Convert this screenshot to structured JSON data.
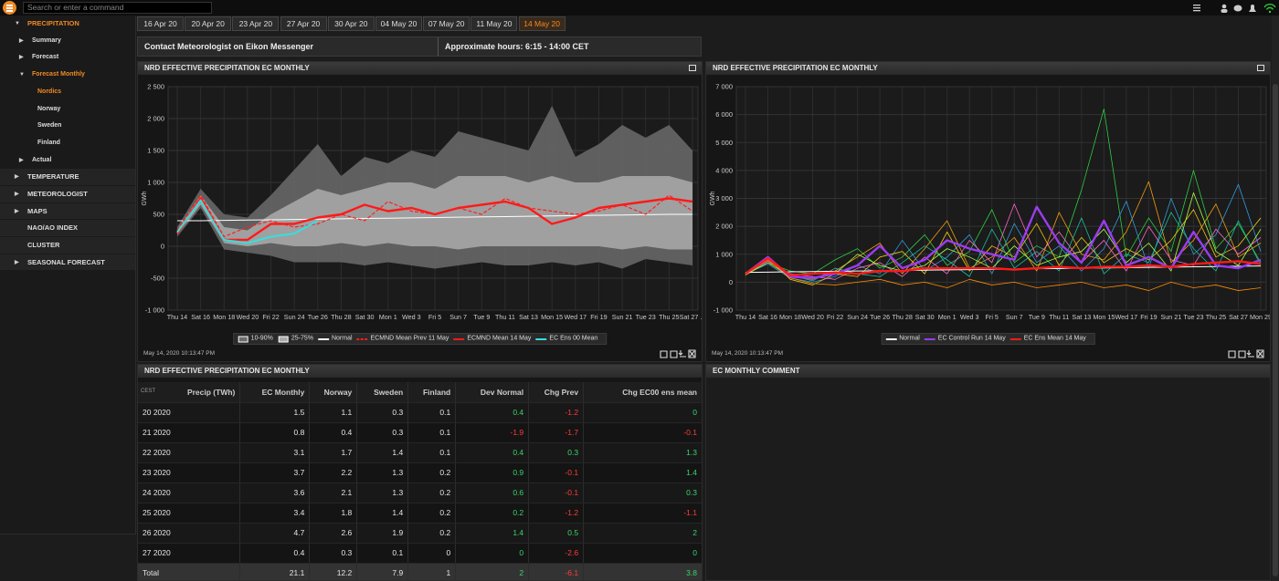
{
  "top_bar": {
    "search_placeholder": "Search or enter a command"
  },
  "sidebar": {
    "items": [
      {
        "text": "PRECIPITATION",
        "level": 0,
        "arrow": "down",
        "active": true
      },
      {
        "text": "Summary",
        "level": 1,
        "arrow": "right"
      },
      {
        "text": "Forecast",
        "level": 1,
        "arrow": "right"
      },
      {
        "text": "Forecast Monthly",
        "level": 1,
        "arrow": "down",
        "active": true
      },
      {
        "text": "Nordics",
        "level": 2,
        "active": true
      },
      {
        "text": "Norway",
        "level": 2
      },
      {
        "text": "Sweden",
        "level": 2
      },
      {
        "text": "Finland",
        "level": 2
      },
      {
        "text": "Actual",
        "level": 1,
        "arrow": "right"
      },
      {
        "text": "TEMPERATURE",
        "level": 0,
        "arrow": "right"
      },
      {
        "text": "METEOROLOGIST",
        "level": 0,
        "arrow": "right"
      },
      {
        "text": "MAPS",
        "level": 0,
        "arrow": "right"
      },
      {
        "text": "NAO/AO INDEX",
        "level": 0
      },
      {
        "text": "CLUSTER",
        "level": 0
      },
      {
        "text": "SEASONAL FORECAST",
        "level": 0,
        "arrow": "right"
      }
    ]
  },
  "tabs": {
    "items": [
      "16 Apr 20",
      "20 Apr 20",
      "23 Apr 20",
      "27 Apr 20",
      "30 Apr 20",
      "04 May 20",
      "07 May 20",
      "11 May 20",
      "14 May 20"
    ],
    "active": 8
  },
  "info_bar": {
    "contact": "Contact Meteorologist on Eikon Messenger",
    "hours": "Approximate hours: 6:15 - 14:00 CET"
  },
  "chart_data": [
    {
      "type": "line",
      "title": "NRD EFFECTIVE PRECIPITATION EC MONTHLY",
      "y_label": "GWh",
      "timestamp": "May 14, 2020 10:13:47 PM",
      "grid": true,
      "categories": [
        "Thu 14",
        "Sat 16",
        "Mon 18",
        "Wed 20",
        "Fri 22",
        "Sun 24",
        "Tue 26",
        "Thu 28",
        "Sat 30",
        "Mon 1",
        "Wed 3",
        "Fri 5",
        "Sun 7",
        "Tue 9",
        "Thu 11",
        "Sat 13",
        "Mon 15",
        "Wed 17",
        "Fri 19",
        "Sun 21",
        "Tue 23",
        "Thu 25",
        "Sat 27 ..."
      ],
      "ylim": [
        -1000,
        2500
      ],
      "yticks": [
        {
          "value": -1000,
          "label": "-1 000"
        },
        -500,
        0,
        500,
        {
          "value": 1000,
          "label": "1 000"
        },
        {
          "value": 1500,
          "label": "1 500"
        },
        {
          "value": 2000,
          "label": "2 000"
        },
        {
          "value": 2500,
          "label": "2 500"
        }
      ],
      "series": [
        {
          "name": "10-90%",
          "color": "#6b6b6b",
          "high": [
            300,
            900,
            500,
            450,
            800,
            1200,
            1600,
            1100,
            1400,
            1300,
            1500,
            1400,
            1800,
            1700,
            1600,
            1500,
            2200,
            1400,
            1600,
            1900,
            1700,
            1900,
            1500
          ],
          "low": [
            150,
            600,
            -50,
            -100,
            -150,
            -250,
            -250,
            -250,
            -300,
            -250,
            -300,
            -350,
            -300,
            -250,
            -300,
            -300,
            -250,
            -300,
            -250,
            -350,
            -200,
            -250,
            -300
          ]
        },
        {
          "name": "25-75%",
          "color": "#ababab",
          "high": [
            260,
            800,
            300,
            250,
            500,
            700,
            900,
            800,
            900,
            1000,
            1000,
            900,
            1100,
            1100,
            1100,
            1000,
            1100,
            1000,
            1000,
            1100,
            1100,
            1100,
            1000
          ],
          "low": [
            180,
            650,
            50,
            0,
            50,
            0,
            0,
            50,
            0,
            50,
            0,
            0,
            -50,
            0,
            0,
            0,
            0,
            0,
            0,
            -50,
            0,
            -50,
            -50
          ]
        },
        {
          "name": "Normal",
          "color": "#ffffff",
          "line_width": 1,
          "values": [
            400,
            400,
            405,
            410,
            415,
            420,
            425,
            430,
            435,
            440,
            445,
            450,
            455,
            460,
            465,
            470,
            475,
            480,
            485,
            490,
            495,
            500,
            500
          ]
        },
        {
          "name": "ECMND Mean Prev 11 May",
          "color": "#ff2020",
          "dash": true,
          "line_width": 1.2,
          "values": [
            250,
            800,
            150,
            300,
            400,
            300,
            350,
            500,
            400,
            700,
            550,
            500,
            600,
            500,
            750,
            600,
            550,
            500,
            550,
            650,
            500,
            800,
            550
          ]
        },
        {
          "name": "ECMND Mean 14 May",
          "color": "#ff1a1a",
          "line_width": 2.4,
          "values": [
            200,
            750,
            100,
            100,
            350,
            350,
            450,
            500,
            650,
            550,
            600,
            500,
            600,
            650,
            700,
            600,
            350,
            450,
            600,
            650,
            700,
            750,
            700
          ]
        },
        {
          "name": "EC Ens 00 Mean",
          "color": "#33e0e0",
          "line_width": 2,
          "values": [
            220,
            720,
            100,
            50,
            150,
            200,
            400,
            null,
            null,
            null,
            null,
            null,
            null,
            null,
            null,
            null,
            null,
            null,
            null,
            null,
            null,
            null,
            null
          ]
        }
      ]
    },
    {
      "type": "line",
      "title": "NRD EFFECTIVE PRECIPITATION EC MONTHLY",
      "y_label": "GWh",
      "timestamp": "May 14, 2020 10:13:47 PM",
      "grid": true,
      "categories": [
        "Thu 14",
        "Sat 16",
        "Mon 18",
        "Wed 20",
        "Fri 22",
        "Sun 24",
        "Tue 26",
        "Thu 28",
        "Sat 30",
        "Mon 1",
        "Wed 3",
        "Fri 5",
        "Sun 7",
        "Tue 9",
        "Thu 11",
        "Sat 13",
        "Mon 15",
        "Wed 17",
        "Fri 19",
        "Sun 21",
        "Tue 23",
        "Thu 25",
        "Sat 27",
        "Mon 29"
      ],
      "ylim": [
        -1000,
        7000
      ],
      "yticks": [
        {
          "value": -1000,
          "label": "-1 000"
        },
        0,
        {
          "value": 1000,
          "label": "1 000"
        },
        {
          "value": 2000,
          "label": "2 000"
        },
        {
          "value": 3000,
          "label": "3 000"
        },
        {
          "value": 4000,
          "label": "4 000"
        },
        {
          "value": 5000,
          "label": "5 000"
        },
        {
          "value": 6000,
          "label": "6 000"
        },
        {
          "value": 7000,
          "label": "7 000"
        }
      ],
      "series": [
        {
          "color": "#2ecc40",
          "line_width": 0.8,
          "values": [
            300,
            700,
            400,
            300,
            800,
            1200,
            500,
            900,
            1700,
            600,
            1100,
            2600,
            700,
            1300,
            900,
            3300,
            6200,
            900,
            2300,
            1100,
            4000,
            1200,
            2100,
            700
          ]
        },
        {
          "color": "#f39c12",
          "line_width": 0.8,
          "values": [
            250,
            800,
            200,
            100,
            400,
            900,
            1400,
            300,
            1200,
            2200,
            500,
            900,
            1600,
            400,
            2500,
            1000,
            800,
            1800,
            3600,
            700,
            1500,
            2800,
            900,
            1400
          ]
        },
        {
          "color": "#3498db",
          "line_width": 0.8,
          "values": [
            300,
            650,
            150,
            0,
            200,
            600,
            300,
            1500,
            400,
            900,
            1700,
            300,
            2100,
            700,
            1300,
            400,
            1200,
            2900,
            500,
            3000,
            1000,
            1700,
            3500,
            1100
          ]
        },
        {
          "color": "#f1c40f",
          "line_width": 0.8,
          "values": [
            280,
            900,
            100,
            -100,
            300,
            200,
            900,
            1100,
            300,
            1800,
            400,
            1300,
            900,
            2100,
            600,
            1600,
            700,
            1200,
            800,
            1500,
            2600,
            900,
            1300,
            2300
          ]
        },
        {
          "color": "#ff66cc",
          "line_width": 0.8,
          "values": [
            320,
            750,
            300,
            200,
            100,
            500,
            700,
            200,
            900,
            300,
            1500,
            700,
            2800,
            900,
            1800,
            700,
            1500,
            400,
            2000,
            800,
            600,
            1900,
            1000,
            1600
          ]
        },
        {
          "color": "#1abc9c",
          "line_width": 0.8,
          "values": [
            300,
            850,
            250,
            50,
            500,
            300,
            200,
            700,
            1300,
            800,
            200,
            1900,
            500,
            1100,
            400,
            2300,
            300,
            1000,
            700,
            2500,
            1200,
            400,
            2200,
            600
          ]
        },
        {
          "color": "#aaff44",
          "line_width": 0.8,
          "values": [
            260,
            700,
            200,
            150,
            300,
            1000,
            600,
            400,
            600,
            1200,
            900,
            500,
            1300,
            600,
            900,
            1100,
            1900,
            700,
            1400,
            400,
            3200,
            1100,
            600,
            1900
          ]
        },
        {
          "color": "#ff8800",
          "line_width": 0.8,
          "values": [
            300,
            800,
            150,
            -50,
            -100,
            0,
            100,
            -100,
            0,
            -200,
            100,
            -100,
            0,
            -200,
            -100,
            0,
            -200,
            -100,
            -300,
            0,
            -200,
            -100,
            -300,
            -200
          ]
        },
        {
          "name": "Normal",
          "color": "#ffffff",
          "line_width": 1,
          "values": [
            350,
            360,
            370,
            380,
            390,
            400,
            410,
            420,
            430,
            440,
            450,
            460,
            470,
            480,
            490,
            500,
            510,
            520,
            530,
            540,
            550,
            560,
            570,
            580
          ]
        },
        {
          "name": "EC Control Run 14 May",
          "color": "#9b3cf0",
          "line_width": 2.4,
          "values": [
            300,
            900,
            200,
            150,
            300,
            600,
            1300,
            500,
            800,
            1500,
            1200,
            1000,
            800,
            2700,
            1400,
            700,
            2200,
            600,
            900,
            500,
            1800,
            600,
            500,
            800
          ]
        },
        {
          "name": "EC Ens Mean 14 May",
          "color": "#ff1a1a",
          "line_width": 2.4,
          "values": [
            300,
            850,
            250,
            300,
            350,
            300,
            400,
            400,
            500,
            500,
            500,
            500,
            450,
            500,
            550,
            500,
            550,
            550,
            600,
            550,
            650,
            700,
            750,
            650
          ]
        }
      ]
    }
  ],
  "table": {
    "title": "NRD EFFECTIVE PRECIPITATION EC MONTHLY",
    "corner": "CEST",
    "columns": [
      "Precip (TWh)",
      "EC Monthly",
      "Norway",
      "Sweden",
      "Finland",
      "Dev Normal",
      "Chg Prev",
      "Chg EC00 ens mean"
    ],
    "rows": [
      [
        "20 2020",
        1.5,
        1.1,
        0.3,
        0.1,
        0.4,
        -1.2,
        0
      ],
      [
        "21 2020",
        0.8,
        0.4,
        0.3,
        0.1,
        -1.9,
        -1.7,
        -0.1
      ],
      [
        "22 2020",
        3.1,
        1.7,
        1.4,
        0.1,
        0.4,
        0.3,
        1.3
      ],
      [
        "23 2020",
        3.7,
        2.2,
        1.3,
        0.2,
        0.9,
        -0.1,
        1.4
      ],
      [
        "24 2020",
        3.6,
        2.1,
        1.3,
        0.2,
        0.6,
        -0.1,
        0.3
      ],
      [
        "25 2020",
        3.4,
        1.8,
        1.4,
        0.2,
        0.2,
        -1.2,
        -1.1
      ],
      [
        "26 2020",
        4.7,
        2.6,
        1.9,
        0.2,
        1.4,
        0.5,
        2
      ],
      [
        "27 2020",
        0.4,
        0.3,
        0.1,
        0,
        0,
        -2.6,
        0
      ]
    ],
    "total": [
      "Total",
      21.1,
      12.2,
      7.9,
      1,
      2,
      -6.1,
      3.8
    ]
  },
  "comment_panel": {
    "title": "EC MONTHLY COMMENT"
  }
}
